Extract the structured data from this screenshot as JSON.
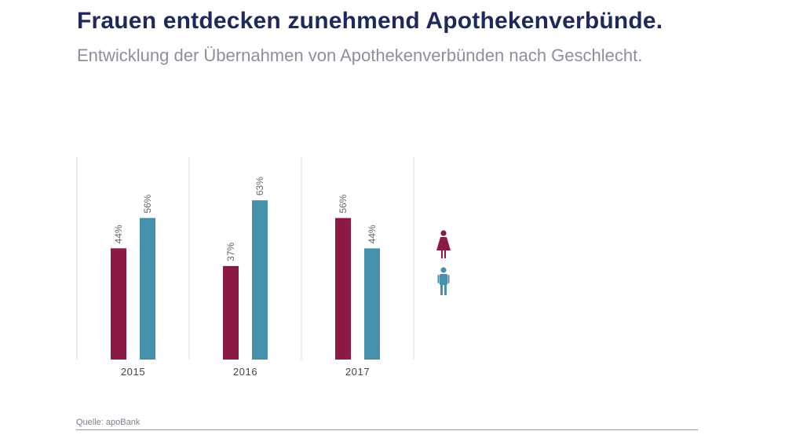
{
  "title": "Frauen entdecken zunehmend Apothekenverbünde.",
  "subtitle": "Entwicklung der Übernahmen von Apothekenverbünden nach Geschlecht.",
  "source": "Quelle: apoBank",
  "colors": {
    "female": "#8b1a45",
    "male": "#4591ab",
    "title": "#1f2a5c"
  },
  "legend": [
    {
      "icon": "woman-icon",
      "color": "#8b1a45"
    },
    {
      "icon": "man-icon",
      "color": "#4591ab"
    }
  ],
  "chart_data": {
    "type": "bar",
    "categories": [
      "2015",
      "2016",
      "2017"
    ],
    "series": [
      {
        "values": [
          44,
          37,
          56
        ],
        "labels": [
          "44%",
          "37%",
          "56%"
        ],
        "color": "#8b1a45"
      },
      {
        "values": [
          56,
          63,
          44
        ],
        "labels": [
          "56%",
          "63%",
          "44%"
        ],
        "color": "#4591ab"
      }
    ],
    "ylim": [
      0,
      100
    ],
    "grid": false,
    "legend_placement": "right"
  }
}
